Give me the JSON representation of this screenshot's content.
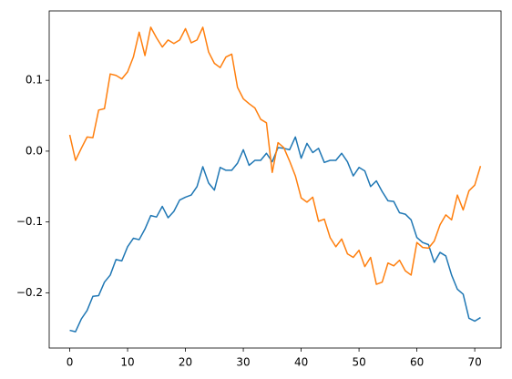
{
  "chart_data": {
    "type": "line",
    "x": [
      0,
      1,
      2,
      3,
      4,
      5,
      6,
      7,
      8,
      9,
      10,
      11,
      12,
      13,
      14,
      15,
      16,
      17,
      18,
      19,
      20,
      21,
      22,
      23,
      24,
      25,
      26,
      27,
      28,
      29,
      30,
      31,
      32,
      33,
      34,
      35,
      36,
      37,
      38,
      39,
      40,
      41,
      42,
      43,
      44,
      45,
      46,
      47,
      48,
      49,
      50,
      51,
      52,
      53,
      54,
      55,
      56,
      57,
      58,
      59,
      60,
      61,
      62,
      63,
      64,
      65,
      66,
      67,
      68,
      69,
      70,
      71
    ],
    "series": [
      {
        "color": "#1f77b4",
        "values": [
          -0.253,
          -0.255,
          -0.237,
          -0.225,
          -0.205,
          -0.204,
          -0.185,
          -0.175,
          -0.153,
          -0.155,
          -0.135,
          -0.123,
          -0.125,
          -0.11,
          -0.091,
          -0.093,
          -0.078,
          -0.094,
          -0.085,
          -0.069,
          -0.065,
          -0.062,
          -0.05,
          -0.022,
          -0.045,
          -0.055,
          -0.023,
          -0.027,
          -0.027,
          -0.017,
          0.002,
          -0.02,
          -0.013,
          -0.013,
          -0.003,
          -0.015,
          0.005,
          0.004,
          0.002,
          0.02,
          -0.01,
          0.011,
          -0.002,
          0.004,
          -0.016,
          -0.013,
          -0.013,
          -0.003,
          -0.015,
          -0.035,
          -0.023,
          -0.028,
          -0.05,
          -0.042,
          -0.057,
          -0.07,
          -0.071,
          -0.087,
          -0.089,
          -0.097,
          -0.122,
          -0.129,
          -0.132,
          -0.157,
          -0.143,
          -0.148,
          -0.175,
          -0.195,
          -0.202,
          -0.236,
          -0.24,
          -0.235
        ]
      },
      {
        "color": "#ff7f0e",
        "values": [
          0.023,
          -0.013,
          0.004,
          0.02,
          0.019,
          0.058,
          0.06,
          0.109,
          0.107,
          0.102,
          0.112,
          0.133,
          0.168,
          0.135,
          0.175,
          0.16,
          0.147,
          0.157,
          0.152,
          0.157,
          0.173,
          0.153,
          0.157,
          0.175,
          0.14,
          0.124,
          0.118,
          0.133,
          0.137,
          0.09,
          0.074,
          0.067,
          0.061,
          0.045,
          0.04,
          -0.03,
          0.012,
          0.005,
          -0.014,
          -0.035,
          -0.066,
          -0.072,
          -0.065,
          -0.099,
          -0.096,
          -0.122,
          -0.135,
          -0.124,
          -0.145,
          -0.15,
          -0.14,
          -0.163,
          -0.15,
          -0.188,
          -0.185,
          -0.158,
          -0.162,
          -0.154,
          -0.169,
          -0.175,
          -0.129,
          -0.136,
          -0.137,
          -0.127,
          -0.104,
          -0.09,
          -0.097,
          -0.062,
          -0.083,
          -0.056,
          -0.048,
          -0.021
        ]
      }
    ],
    "xlim": [
      -3.55,
      74.55
    ],
    "xticks": [
      0,
      10,
      20,
      30,
      40,
      50,
      60,
      70
    ],
    "ylim": [
      -0.278,
      0.198
    ],
    "yticks": [
      {
        "value": -0.2,
        "label": "−0.2"
      },
      {
        "value": -0.1,
        "label": "−0.1"
      },
      {
        "value": 0,
        "label": "0.0"
      },
      {
        "value": 0.1,
        "label": "0.1"
      }
    ]
  }
}
